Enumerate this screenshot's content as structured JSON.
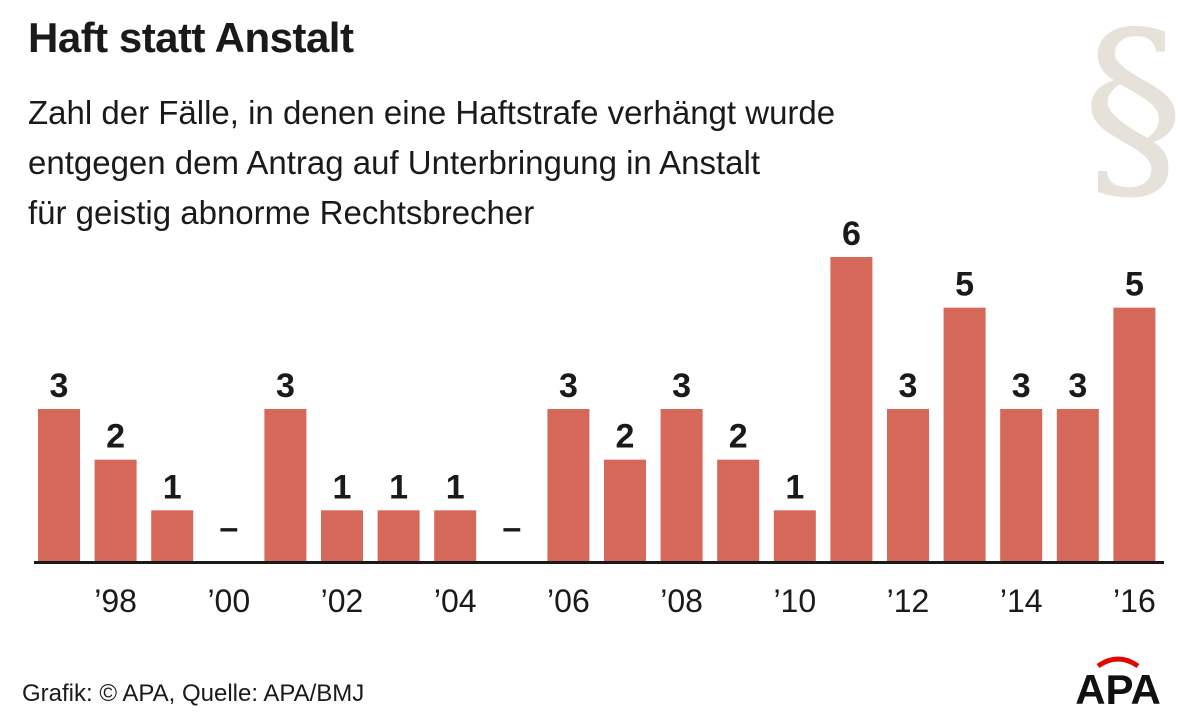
{
  "header": {
    "title": "Haft statt Anstalt",
    "subtitle_lines": [
      "Zahl der Fälle, in denen eine Haftstrafe verhängt wurde",
      "entgegen dem Antrag auf Unterbringung in Anstalt",
      "für geistig abnorme Rechtsbrecher"
    ]
  },
  "decoration": {
    "paragraph_symbol": "§",
    "symbol_color": "#e7e2d9"
  },
  "footer": {
    "credit": "Grafik: © APA, Quelle: APA/BMJ"
  },
  "logo": {
    "text": "APA",
    "color": "#111111",
    "accent": "#e10600"
  },
  "chart_data": {
    "type": "bar",
    "categories": [
      "1997",
      "1998",
      "1999",
      "2000",
      "2001",
      "2002",
      "2003",
      "2004",
      "2005",
      "2006",
      "2007",
      "2008",
      "2009",
      "2010",
      "2011",
      "2012",
      "2013",
      "2014",
      "2015",
      "2016"
    ],
    "values": [
      3,
      2,
      1,
      0,
      3,
      1,
      1,
      1,
      0,
      3,
      2,
      3,
      2,
      1,
      6,
      3,
      5,
      3,
      3,
      5
    ],
    "data_labels": [
      "3",
      "2",
      "1",
      "–",
      "3",
      "1",
      "1",
      "1",
      "–",
      "3",
      "2",
      "3",
      "2",
      "1",
      "6",
      "3",
      "5",
      "3",
      "3",
      "5"
    ],
    "x_tick_labels": [
      "",
      "’98",
      "",
      "’00",
      "",
      "’02",
      "",
      "’04",
      "",
      "’06",
      "",
      "’08",
      "",
      "’10",
      "",
      "’12",
      "",
      "’14",
      "",
      "’16"
    ],
    "ylim": [
      0,
      6
    ],
    "grid": false,
    "bar_color": "#d6685a",
    "axis_color": "#1a1a1a"
  }
}
